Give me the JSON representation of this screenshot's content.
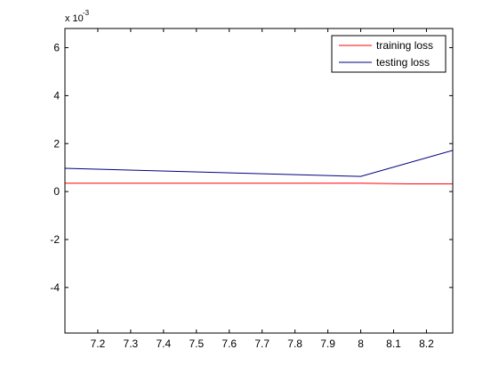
{
  "chart_data": {
    "type": "line",
    "title": "",
    "xlabel": "",
    "ylabel": "",
    "y_multiplier_label": {
      "base": "x 10",
      "exponent": "-3"
    },
    "xlim": [
      7.1,
      8.28
    ],
    "ylim": [
      -5.9,
      6.8
    ],
    "xticks": [
      7.2,
      7.3,
      7.4,
      7.5,
      7.6,
      7.7,
      7.8,
      7.9,
      8,
      8.1,
      8.2
    ],
    "xtick_labels": [
      "7.2",
      "7.3",
      "7.4",
      "7.5",
      "7.6",
      "7.7",
      "7.8",
      "7.9",
      "8",
      "8.1",
      "8.2"
    ],
    "yticks": [
      -4,
      -2,
      0,
      2,
      4,
      6
    ],
    "ytick_labels": [
      "-4",
      "-2",
      "0",
      "2",
      "4",
      "6"
    ],
    "grid": false,
    "legend_position": "top-right",
    "series": [
      {
        "name": "training loss",
        "color": "#ff0000",
        "x": [
          7.1,
          8,
          8.15,
          8.28
        ],
        "y": [
          0.35,
          0.35,
          0.32,
          0.32
        ]
      },
      {
        "name": "testing loss",
        "color": "#00007f",
        "x": [
          7.1,
          8,
          8.28
        ],
        "y": [
          0.97,
          0.63,
          1.72
        ]
      }
    ]
  }
}
